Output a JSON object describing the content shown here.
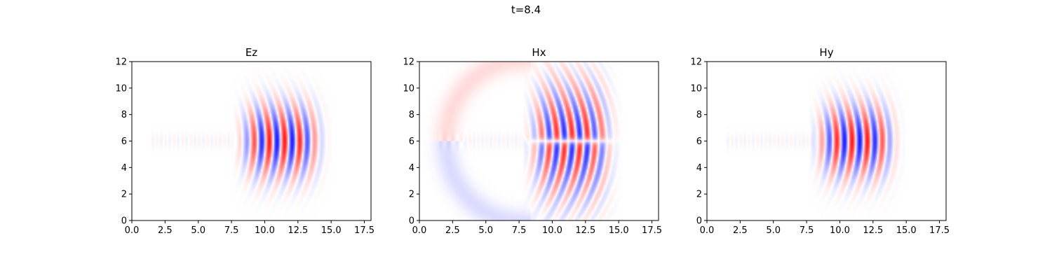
{
  "figure": {
    "suptitle": "t=8.4"
  },
  "colormap": {
    "name": "bwr",
    "negative_color": "#0000ff",
    "zero_color": "#ffffff",
    "positive_color": "#ff0000"
  },
  "chart_data": [
    {
      "type": "heatmap",
      "title": "Ez",
      "xlim": [
        0,
        18
      ],
      "ylim": [
        0,
        12
      ],
      "x_ticks": [
        "0.0",
        "2.5",
        "5.0",
        "7.5",
        "10.0",
        "12.5",
        "15.0",
        "17.5"
      ],
      "y_ticks": [
        "0",
        "2",
        "4",
        "6",
        "8",
        "10",
        "12"
      ],
      "field": {
        "center_y": 6,
        "wavefront_x": 8.4,
        "wave_extent_x": [
          8.2,
          14.2
        ],
        "wavelength": 1.15,
        "peak_amplitude": 0.9,
        "vertical_halfwidth": 2.5,
        "phase_sign": 1
      }
    },
    {
      "type": "heatmap",
      "title": "Hx",
      "xlim": [
        0,
        18
      ],
      "ylim": [
        0,
        12
      ],
      "x_ticks": [
        "0.0",
        "2.5",
        "5.0",
        "7.5",
        "10.0",
        "12.5",
        "15.0",
        "17.5"
      ],
      "y_ticks": [
        "0",
        "2",
        "4",
        "6",
        "8",
        "10",
        "12"
      ],
      "field": {
        "center_y": 6,
        "wavefront_x": 8.6,
        "wave_extent_x": [
          8.4,
          14.4
        ],
        "wavelength": 1.15,
        "peak_amplitude": 0.85,
        "vertical_halfwidth": 3.5,
        "antisymmetric_about_center": true,
        "phase_sign": 1
      }
    },
    {
      "type": "heatmap",
      "title": "Hy",
      "xlim": [
        0,
        18
      ],
      "ylim": [
        0,
        12
      ],
      "x_ticks": [
        "0.0",
        "2.5",
        "5.0",
        "7.5",
        "10.0",
        "12.5",
        "15.0",
        "17.5"
      ],
      "y_ticks": [
        "0",
        "2",
        "4",
        "6",
        "8",
        "10",
        "12"
      ],
      "field": {
        "center_y": 6,
        "wavefront_x": 8.3,
        "wave_extent_x": [
          8.3,
          14.1
        ],
        "wavelength": 1.15,
        "peak_amplitude": 0.9,
        "vertical_halfwidth": 2.5,
        "phase_sign": -1
      }
    }
  ]
}
